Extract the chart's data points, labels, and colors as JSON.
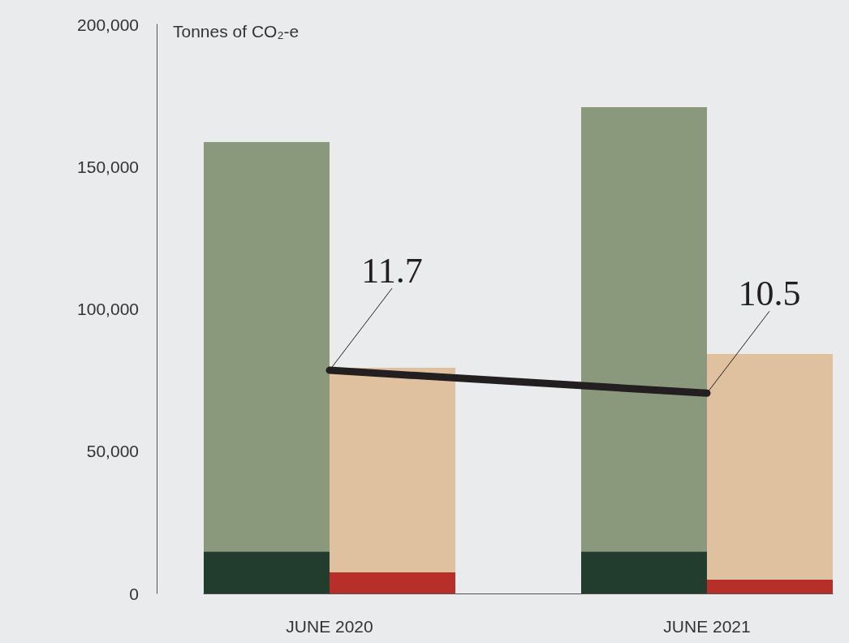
{
  "chart_data": {
    "type": "bar",
    "ylabel": "Tonnes of CO₂-e",
    "categories": [
      "JUNE 2020",
      null,
      null,
      "JUNE 2021",
      null
    ],
    "stacked": true,
    "series": [
      {
        "color": "#223d2e",
        "values": [
          14800,
          null,
          null,
          14800,
          null
        ]
      },
      {
        "color": "#8a997b",
        "values": [
          143800,
          null,
          null,
          156100,
          null
        ]
      },
      {
        "color": "#b82e28",
        "values": [
          null,
          7400,
          null,
          null,
          4900
        ]
      },
      {
        "color": "#e0c19f",
        "values": [
          null,
          71900,
          null,
          null,
          79300
        ]
      },
      {
        "type": "line",
        "axis": "y2",
        "color": "#231f20",
        "x": [
          "JUNE 2020",
          "JUNE 2021"
        ],
        "values": [
          11.7,
          10.5
        ],
        "value_labels": [
          "11.7",
          "10.5"
        ]
      }
    ],
    "ylim": [
      0,
      200000
    ],
    "yticks": [
      0,
      {
        "value": 50000,
        "label": "50,000"
      },
      {
        "value": 100000,
        "label": "100,000"
      },
      {
        "value": 150000,
        "label": "150,000"
      },
      {
        "value": 200000,
        "label": "200,000"
      }
    ],
    "grid": false,
    "marker": "none"
  }
}
